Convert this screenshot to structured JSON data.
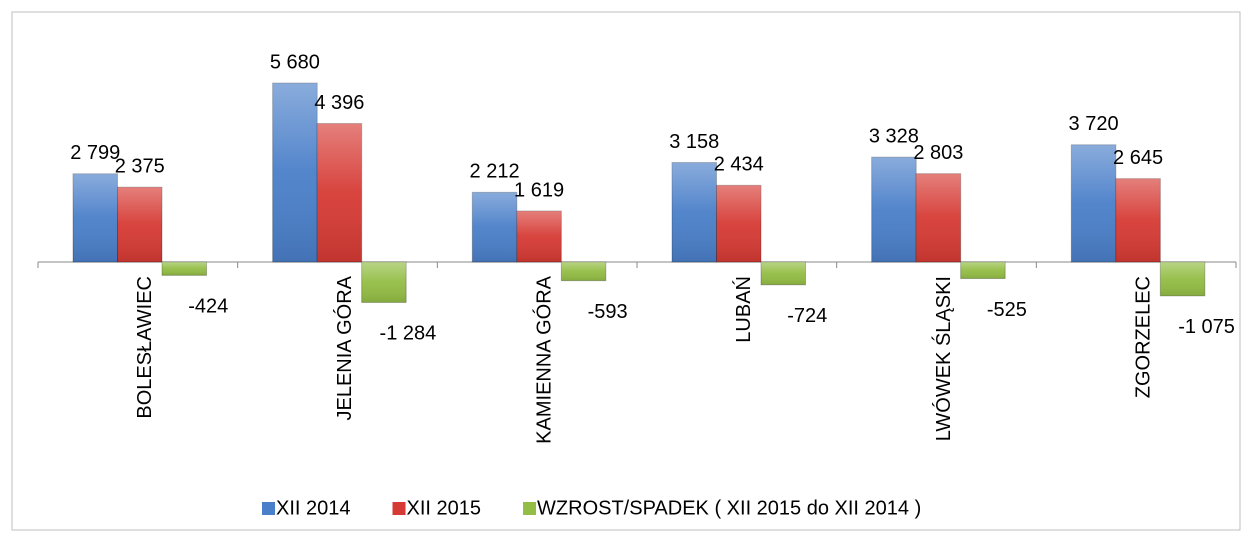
{
  "chart_data": {
    "type": "bar",
    "categories": [
      "BOLESŁAWIEC",
      "JELENIA GÓRA",
      "KAMIENNA GÓRA",
      "LUBAŃ",
      "LWÓWEK ŚLĄSKI",
      "ZGORZELEC"
    ],
    "series": [
      {
        "name": "XII 2014",
        "color": "#4a7fc9",
        "values": [
          2799,
          5680,
          2212,
          3158,
          3328,
          3720
        ],
        "value_labels": [
          "2 799",
          "5 680",
          "2 212",
          "3 158",
          "3 328",
          "3 720"
        ]
      },
      {
        "name": "XII 2015",
        "color": "#d63a34",
        "values": [
          2375,
          4396,
          1619,
          2434,
          2803,
          2645
        ],
        "value_labels": [
          "2 375",
          "4 396",
          "1 619",
          "2 434",
          "2 803",
          "2 645"
        ]
      },
      {
        "name": "WZROST/SPADEK ( XII 2015 do XII 2014 )",
        "color": "#93bd44",
        "values": [
          -424,
          -1284,
          -593,
          -724,
          -525,
          -1075
        ],
        "value_labels": [
          "-424",
          "-1 284",
          "-593",
          "-724",
          "-525",
          "-1 075"
        ]
      }
    ],
    "ylim": [
      -3000,
      6000
    ],
    "legend": "bottom"
  }
}
